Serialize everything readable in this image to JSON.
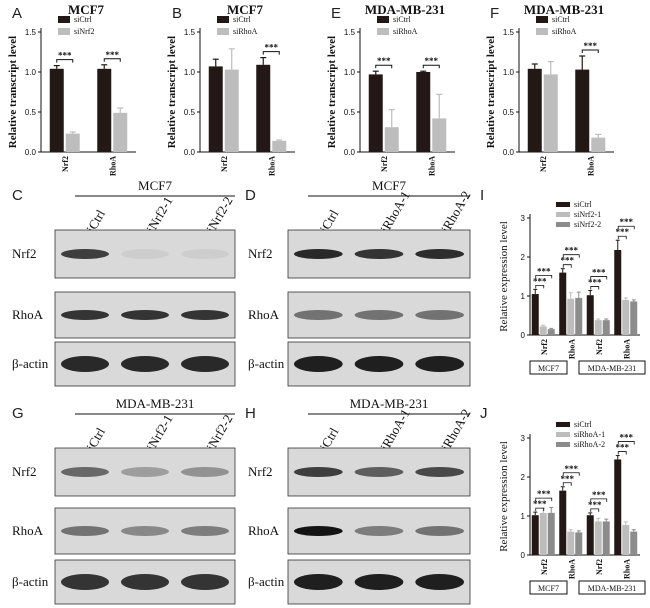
{
  "colors": {
    "dark": "#231815",
    "light": "#bdbdbd",
    "mid": "#8c8c8c",
    "blotbg": "#d9d9d9"
  },
  "chart_data": [
    {
      "id": "A",
      "type": "bar",
      "title": "MCF7",
      "ylabel": "Relative transcript level",
      "categories": [
        "Nrf2",
        "RhoA"
      ],
      "ylim": [
        0,
        1.5
      ],
      "yticks": [
        0.0,
        0.5,
        1.0,
        1.5
      ],
      "series": [
        {
          "name": "siCtrl",
          "values": [
            1.04,
            1.04
          ],
          "errors": [
            0.04,
            0.05
          ]
        },
        {
          "name": "siNrf2",
          "values": [
            0.23,
            0.49
          ],
          "errors": [
            0.02,
            0.06
          ]
        }
      ],
      "significance": [
        "***",
        "***"
      ]
    },
    {
      "id": "B",
      "type": "bar",
      "title": "MCF7",
      "ylabel": "Relative transcript level",
      "categories": [
        "Nrf2",
        "RhoA"
      ],
      "ylim": [
        0,
        1.5
      ],
      "yticks": [
        0.0,
        0.5,
        1.0,
        1.5
      ],
      "series": [
        {
          "name": "siCtrl",
          "values": [
            1.07,
            1.09
          ],
          "errors": [
            0.09,
            0.09
          ]
        },
        {
          "name": "siRhoA",
          "values": [
            1.03,
            0.14
          ],
          "errors": [
            0.26,
            0.01
          ]
        }
      ],
      "significance": [
        "",
        "***"
      ]
    },
    {
      "id": "E",
      "type": "bar",
      "title": "MDA-MB-231",
      "ylabel": "Relative transcript level",
      "categories": [
        "Nrf2",
        "RhoA"
      ],
      "ylim": [
        0,
        1.5
      ],
      "yticks": [
        0.0,
        0.5,
        1.0,
        1.5
      ],
      "series": [
        {
          "name": "siCtrl",
          "values": [
            0.97,
            1.0
          ],
          "errors": [
            0.04,
            0.01
          ]
        },
        {
          "name": "siRhoA",
          "values": [
            0.31,
            0.42
          ],
          "errors": [
            0.22,
            0.3
          ]
        }
      ],
      "significance": [
        "***",
        "***"
      ]
    },
    {
      "id": "F",
      "type": "bar",
      "title": "MDA-MB-231",
      "ylabel": "Relative transcript level",
      "categories": [
        "Nrf2",
        "RhoA"
      ],
      "ylim": [
        0,
        1.5
      ],
      "yticks": [
        0.0,
        0.5,
        1.0,
        1.5
      ],
      "series": [
        {
          "name": "siCtrl",
          "values": [
            1.04,
            1.03
          ],
          "errors": [
            0.06,
            0.17
          ]
        },
        {
          "name": "siRhoA",
          "values": [
            0.97,
            0.18
          ],
          "errors": [
            0.16,
            0.04
          ]
        }
      ],
      "significance": [
        "",
        "***"
      ]
    },
    {
      "id": "I",
      "type": "bar",
      "ylabel": "Relative expression level",
      "categories": [
        "Nrf2",
        "RhoA",
        "Nrf2",
        "RhoA"
      ],
      "groups": [
        "MCF7",
        "MDA-MB-231"
      ],
      "ylim": [
        0,
        3
      ],
      "yticks": [
        0,
        1,
        2,
        3
      ],
      "series": [
        {
          "name": "siCtrl",
          "values": [
            1.05,
            1.6,
            1.02,
            2.18
          ],
          "errors": [
            0.12,
            0.1,
            0.12,
            0.25
          ]
        },
        {
          "name": "siNrf2-1",
          "values": [
            0.22,
            0.93,
            0.38,
            0.9
          ],
          "errors": [
            0.03,
            0.15,
            0.03,
            0.05
          ]
        },
        {
          "name": "siNrf2-2",
          "values": [
            0.15,
            0.95,
            0.38,
            0.86
          ],
          "errors": [
            0.02,
            0.15,
            0.03,
            0.04
          ]
        }
      ]
    },
    {
      "id": "J",
      "type": "bar",
      "ylabel": "Relative expression level",
      "categories": [
        "Nrf2",
        "RhoA",
        "Nrf2",
        "RhoA"
      ],
      "groups": [
        "MCF7",
        "MDA-MB-231"
      ],
      "ylim": [
        0,
        3
      ],
      "yticks": [
        0,
        1,
        2,
        3
      ],
      "series": [
        {
          "name": "siCtrl",
          "values": [
            1.02,
            1.65,
            1.02,
            2.45
          ],
          "errors": [
            0.08,
            0.1,
            0.06,
            0.1
          ]
        },
        {
          "name": "siRhoA-1",
          "values": [
            1.08,
            0.6,
            0.86,
            0.77
          ],
          "errors": [
            0.12,
            0.05,
            0.08,
            0.08
          ]
        },
        {
          "name": "siRhoA-2",
          "values": [
            1.08,
            0.58,
            0.86,
            0.6
          ],
          "errors": [
            0.14,
            0.04,
            0.06,
            0.05
          ]
        }
      ]
    }
  ],
  "blots": [
    {
      "id": "C",
      "cell": "MCF7",
      "lanes": [
        "siCtrl",
        "siNrf2-1",
        "siNrf2-2"
      ],
      "rows": [
        "Nrf2",
        "RhoA",
        "β-actin"
      ]
    },
    {
      "id": "D",
      "cell": "MCF7",
      "lanes": [
        "siCtrl",
        "siRhoA-1",
        "siRhoA-2"
      ],
      "rows": [
        "Nrf2",
        "RhoA",
        "β-actin"
      ]
    },
    {
      "id": "G",
      "cell": "MDA-MB-231",
      "lanes": [
        "siCtrl",
        "siNrf2-1",
        "siNrf2-2"
      ],
      "rows": [
        "Nrf2",
        "RhoA",
        "β-actin"
      ]
    },
    {
      "id": "H",
      "cell": "MDA-MB-231",
      "lanes": [
        "siCtrl",
        "siRhoA-1",
        "siRhoA-2"
      ],
      "rows": [
        "Nrf2",
        "RhoA",
        "β-actin"
      ]
    }
  ],
  "band_intensity": {
    "C": [
      [
        0.8,
        0.12,
        0.12
      ],
      [
        0.85,
        0.85,
        0.85
      ],
      [
        0.9,
        0.9,
        0.9
      ]
    ],
    "D": [
      [
        0.9,
        0.85,
        0.88
      ],
      [
        0.55,
        0.55,
        0.55
      ],
      [
        0.95,
        0.95,
        0.95
      ]
    ],
    "G": [
      [
        0.6,
        0.35,
        0.4
      ],
      [
        0.55,
        0.45,
        0.5
      ],
      [
        0.85,
        0.85,
        0.85
      ]
    ],
    "H": [
      [
        0.8,
        0.65,
        0.75
      ],
      [
        1.0,
        0.5,
        0.55
      ],
      [
        0.95,
        0.95,
        0.95
      ]
    ]
  }
}
